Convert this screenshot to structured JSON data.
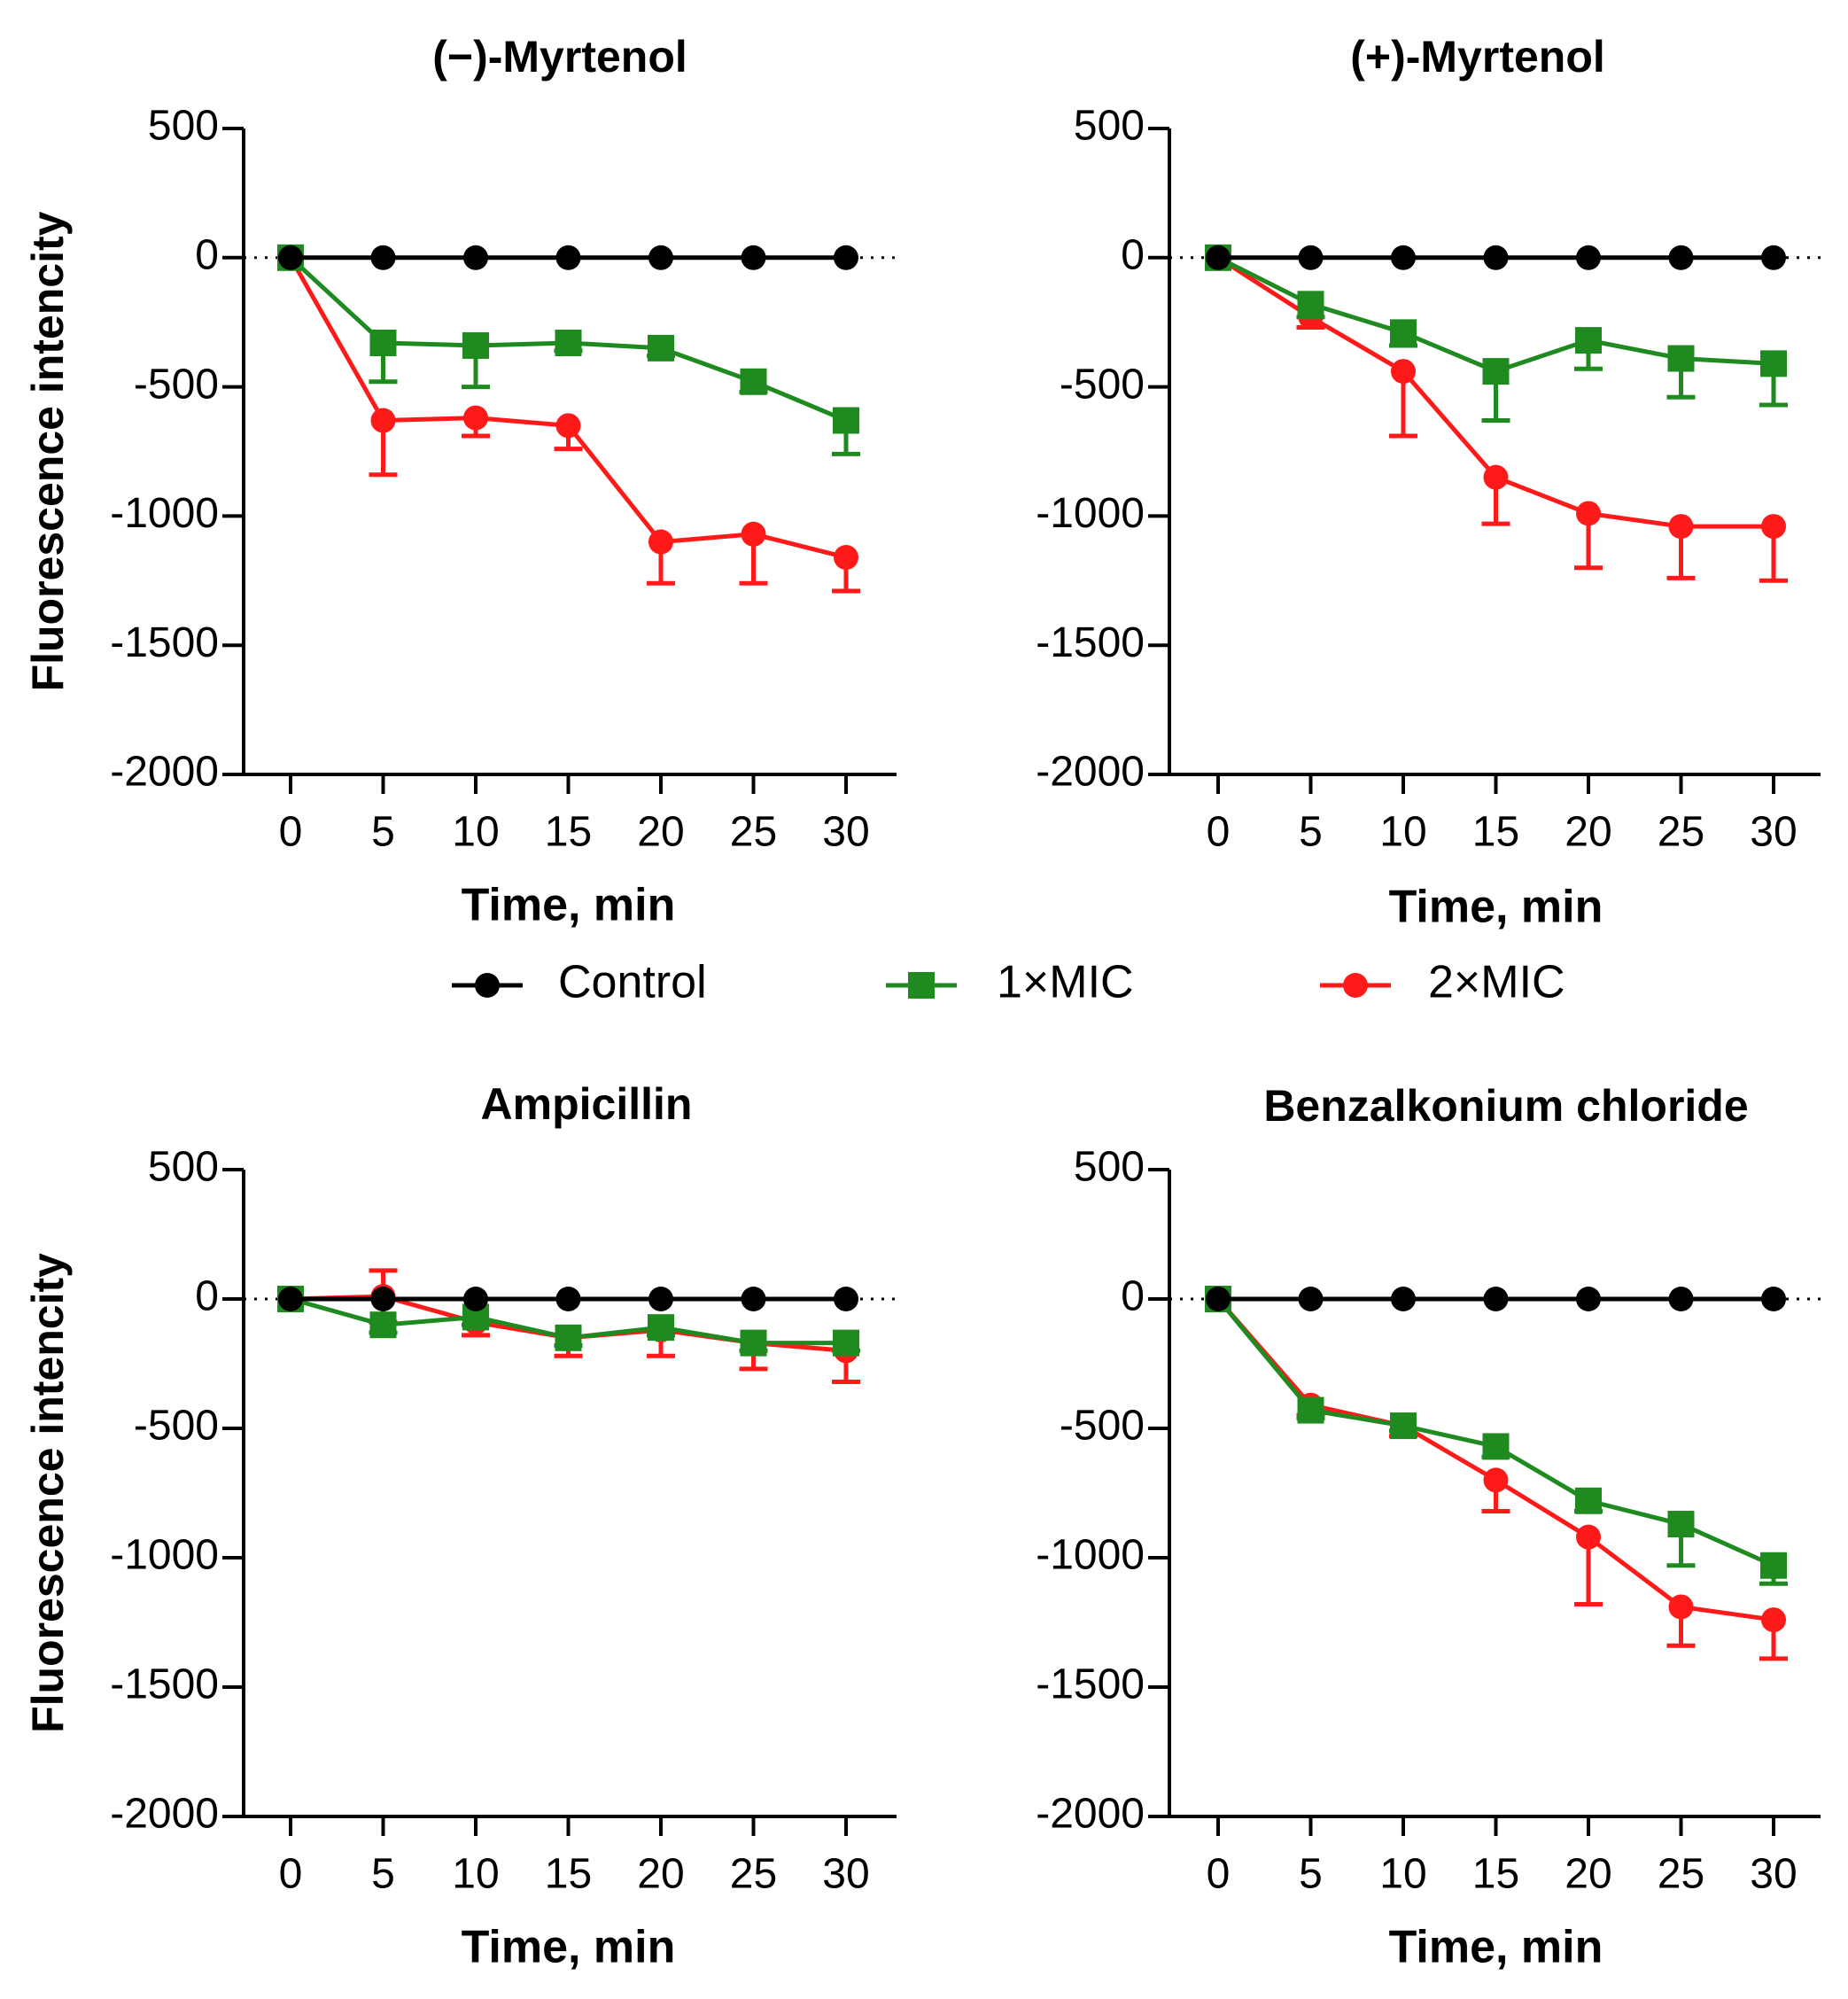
{
  "chart_data": [
    {
      "type": "line",
      "title": "(−)-Myrtenol",
      "xlabel": "Time, min",
      "ylabel": "Fluorescence intencity",
      "x": [
        0,
        5,
        10,
        15,
        20,
        25,
        30
      ],
      "xticks": [
        "0",
        "5",
        "10",
        "15",
        "20",
        "25",
        "30"
      ],
      "ylim": [
        -2000,
        500
      ],
      "yticks": [
        "500",
        "0",
        "-500",
        "-1000",
        "-1500",
        "-2000"
      ],
      "series": [
        {
          "name": "Control",
          "color": "#000000",
          "marker": "circle",
          "values": [
            0,
            0,
            0,
            0,
            0,
            0,
            0
          ],
          "errors": [
            0,
            0,
            0,
            0,
            0,
            0,
            0
          ]
        },
        {
          "name": "1×MIC",
          "color": "#1f8a1f",
          "marker": "square",
          "values": [
            0,
            -330,
            -340,
            -330,
            -350,
            -480,
            -630
          ],
          "errors": [
            0,
            150,
            160,
            30,
            30,
            40,
            130
          ]
        },
        {
          "name": "2×MIC",
          "color": "#ff1a1a",
          "marker": "circle",
          "values": [
            0,
            -630,
            -620,
            -650,
            -1100,
            -1070,
            -1160
          ],
          "errors": [
            0,
            210,
            70,
            90,
            160,
            190,
            130
          ]
        }
      ]
    },
    {
      "type": "line",
      "title": "(+)-Myrtenol",
      "xlabel": "Time, min",
      "ylabel": "",
      "x": [
        0,
        5,
        10,
        15,
        20,
        25,
        30
      ],
      "xticks": [
        "0",
        "5",
        "10",
        "15",
        "20",
        "25",
        "30"
      ],
      "ylim": [
        -2000,
        500
      ],
      "yticks": [
        "500",
        "0",
        "-500",
        "-1000",
        "-1500",
        "-2000"
      ],
      "series": [
        {
          "name": "Control",
          "color": "#000000",
          "marker": "circle",
          "values": [
            0,
            0,
            0,
            0,
            0,
            0,
            0
          ],
          "errors": [
            0,
            0,
            0,
            0,
            0,
            0,
            0
          ]
        },
        {
          "name": "1×MIC",
          "color": "#1f8a1f",
          "marker": "square",
          "values": [
            0,
            -180,
            -290,
            -440,
            -320,
            -390,
            -410
          ],
          "errors": [
            0,
            50,
            50,
            190,
            110,
            150,
            160
          ]
        },
        {
          "name": "2×MIC",
          "color": "#ff1a1a",
          "marker": "circle",
          "values": [
            0,
            -230,
            -440,
            -850,
            -990,
            -1040,
            -1040
          ],
          "errors": [
            0,
            40,
            250,
            180,
            210,
            200,
            210
          ]
        }
      ]
    },
    {
      "type": "line",
      "title": "Ampicillin",
      "xlabel": "Time, min",
      "ylabel": "Fluorescence intencity",
      "x": [
        0,
        5,
        10,
        15,
        20,
        25,
        30
      ],
      "xticks": [
        "0",
        "5",
        "10",
        "15",
        "20",
        "25",
        "30"
      ],
      "ylim": [
        -2000,
        500
      ],
      "yticks": [
        "500",
        "0",
        "-500",
        "-1000",
        "-1500",
        "-2000"
      ],
      "series": [
        {
          "name": "Control",
          "color": "#000000",
          "marker": "circle",
          "values": [
            0,
            0,
            0,
            0,
            0,
            0,
            0
          ],
          "errors": [
            0,
            0,
            0,
            0,
            0,
            0,
            0
          ]
        },
        {
          "name": "1×MIC",
          "color": "#1f8a1f",
          "marker": "square",
          "values": [
            0,
            -100,
            -70,
            -150,
            -110,
            -170,
            -170
          ],
          "errors": [
            0,
            30,
            30,
            30,
            30,
            30,
            30
          ]
        },
        {
          "name": "2×MIC",
          "color": "#ff1a1a",
          "marker": "circle",
          "values": [
            0,
            10,
            -90,
            -150,
            -120,
            -170,
            -200
          ],
          "errors": [
            0,
            100,
            50,
            70,
            100,
            100,
            120
          ]
        }
      ]
    },
    {
      "type": "line",
      "title": "Benzalkonium chloride",
      "xlabel": "Time, min",
      "ylabel": "",
      "x": [
        0,
        5,
        10,
        15,
        20,
        25,
        30
      ],
      "xticks": [
        "0",
        "5",
        "10",
        "15",
        "20",
        "25",
        "30"
      ],
      "ylim": [
        -2000,
        500
      ],
      "yticks": [
        "500",
        "0",
        "-500",
        "-1000",
        "-1500",
        "-2000"
      ],
      "series": [
        {
          "name": "Control",
          "color": "#000000",
          "marker": "circle",
          "values": [
            0,
            0,
            0,
            0,
            0,
            0,
            0
          ],
          "errors": [
            0,
            0,
            0,
            0,
            0,
            0,
            0
          ]
        },
        {
          "name": "1×MIC",
          "color": "#1f8a1f",
          "marker": "square",
          "values": [
            0,
            -430,
            -490,
            -570,
            -780,
            -870,
            -1030
          ],
          "errors": [
            0,
            30,
            20,
            40,
            40,
            160,
            70
          ]
        },
        {
          "name": "2×MIC",
          "color": "#ff1a1a",
          "marker": "circle",
          "values": [
            0,
            -410,
            -490,
            -700,
            -920,
            -1190,
            -1240
          ],
          "errors": [
            0,
            40,
            40,
            120,
            260,
            150,
            150
          ]
        }
      ]
    }
  ],
  "legend": {
    "items": [
      {
        "label": "Control",
        "color": "#000000",
        "marker": "circle"
      },
      {
        "label": "1×MIC",
        "color": "#1f8a1f",
        "marker": "square"
      },
      {
        "label": "2×MIC",
        "color": "#ff1a1a",
        "marker": "circle"
      }
    ]
  }
}
